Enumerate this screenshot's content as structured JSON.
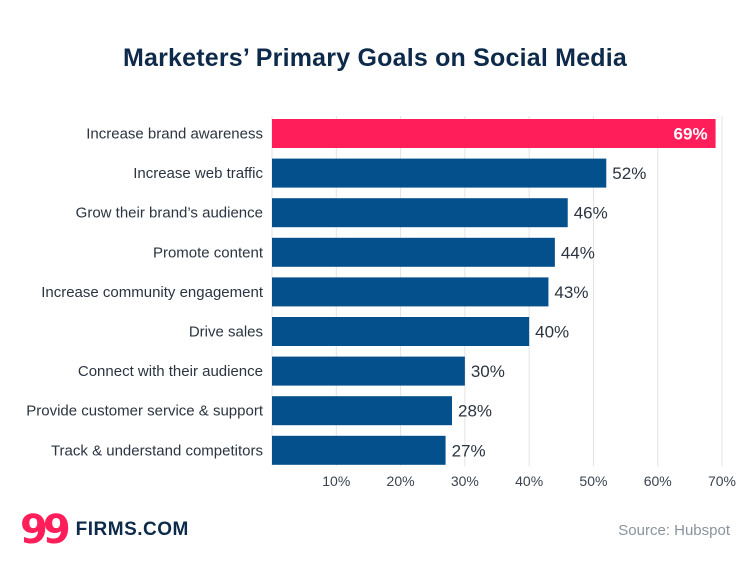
{
  "chart_data": {
    "type": "bar",
    "orientation": "horizontal",
    "title": "Marketers’ Primary Goals on Social Media",
    "categories": [
      "Increase brand awareness",
      "Increase web traffic",
      "Grow their brand’s audience",
      "Promote content",
      "Increase community engagement",
      "Drive sales",
      "Connect with their audience",
      "Provide customer service & support",
      "Track & understand competitors"
    ],
    "values": [
      69,
      52,
      46,
      44,
      43,
      40,
      30,
      28,
      27
    ],
    "value_labels": [
      "69%",
      "52%",
      "46%",
      "44%",
      "43%",
      "40%",
      "30%",
      "28%",
      "27%"
    ],
    "highlight_index": 0,
    "xlim": [
      0,
      70
    ],
    "xticks": [
      10,
      20,
      30,
      40,
      50,
      60,
      70
    ],
    "xtick_labels": [
      "10%",
      "20%",
      "30%",
      "40%",
      "50%",
      "60%",
      "70%"
    ],
    "grid": true,
    "colors": {
      "bar": "#03508c",
      "highlight": "#ff1e5a",
      "grid": "#e3e3e3"
    }
  },
  "branding": {
    "logo_mark": "99",
    "logo_text": "FIRMS.COM"
  },
  "source": "Source: Hubspot"
}
